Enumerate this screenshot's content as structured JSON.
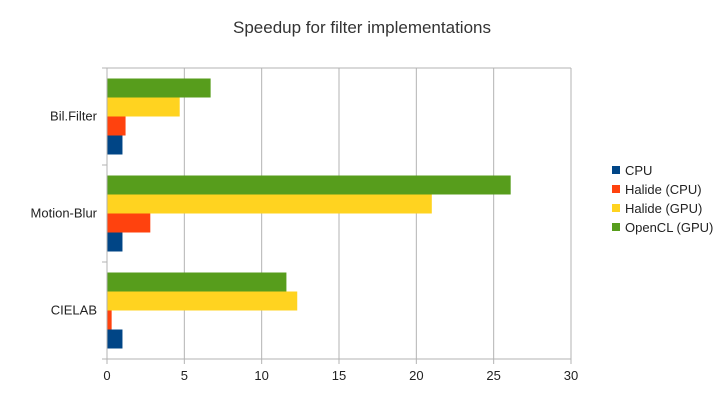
{
  "chart_data": {
    "type": "bar",
    "orientation": "horizontal",
    "title": "Speedup for filter implementations",
    "xlabel": "",
    "ylabel": "",
    "categories": [
      "Bil.Filter",
      "Motion-Blur",
      "CIELAB"
    ],
    "xlim": [
      0,
      30
    ],
    "xticks": [
      0,
      5,
      10,
      15,
      20,
      25,
      30
    ],
    "grid": "vertical",
    "legend_position": "right",
    "series": [
      {
        "name": "CPU",
        "color": "#004586",
        "values": [
          1.0,
          1.0,
          1.0
        ]
      },
      {
        "name": "Halide (CPU)",
        "color": "#ff420e",
        "values": [
          1.2,
          2.8,
          0.3
        ]
      },
      {
        "name": "Halide (GPU)",
        "color": "#ffd320",
        "values": [
          4.7,
          21.0,
          12.3
        ]
      },
      {
        "name": "OpenCL (GPU)",
        "color": "#579d1c",
        "values": [
          6.7,
          26.1,
          11.6
        ]
      }
    ]
  }
}
